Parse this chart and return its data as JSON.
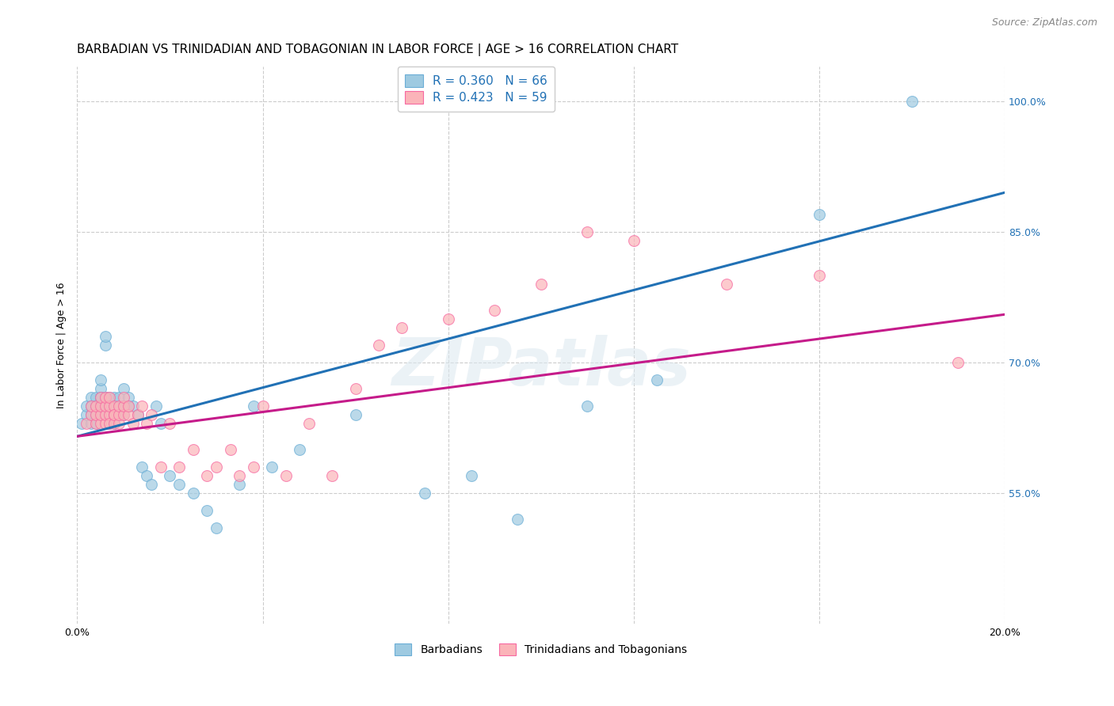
{
  "title": "BARBADIAN VS TRINIDADIAN AND TOBAGONIAN IN LABOR FORCE | AGE > 16 CORRELATION CHART",
  "source": "Source: ZipAtlas.com",
  "ylabel": "In Labor Force | Age > 16",
  "xlim": [
    0.0,
    0.2
  ],
  "ylim": [
    0.4,
    1.04
  ],
  "x_ticks": [
    0.0,
    0.04,
    0.08,
    0.12,
    0.16,
    0.2
  ],
  "x_tick_labels": [
    "0.0%",
    "",
    "",
    "",
    "",
    "20.0%"
  ],
  "y_ticks": [
    0.55,
    0.7,
    0.85,
    1.0
  ],
  "y_tick_labels": [
    "55.0%",
    "70.0%",
    "85.0%",
    "100.0%"
  ],
  "blue_color": "#9ecae1",
  "pink_color": "#fbb4b9",
  "blue_edge_color": "#6baed6",
  "pink_edge_color": "#f768a1",
  "blue_line_color": "#2171b5",
  "pink_line_color": "#c51b8a",
  "legend_label_blue": "R = 0.360   N = 66",
  "legend_label_pink": "R = 0.423   N = 59",
  "barbadians_label": "Barbadians",
  "trinidadians_label": "Trinidadians and Tobagonians",
  "watermark": "ZIPatlas",
  "blue_scatter_x": [
    0.001,
    0.002,
    0.002,
    0.003,
    0.003,
    0.003,
    0.003,
    0.004,
    0.004,
    0.004,
    0.004,
    0.004,
    0.004,
    0.005,
    0.005,
    0.005,
    0.005,
    0.005,
    0.005,
    0.005,
    0.006,
    0.006,
    0.006,
    0.006,
    0.006,
    0.006,
    0.007,
    0.007,
    0.007,
    0.007,
    0.008,
    0.008,
    0.008,
    0.008,
    0.009,
    0.009,
    0.009,
    0.01,
    0.01,
    0.01,
    0.011,
    0.011,
    0.012,
    0.013,
    0.014,
    0.015,
    0.016,
    0.017,
    0.018,
    0.02,
    0.022,
    0.025,
    0.028,
    0.03,
    0.035,
    0.038,
    0.042,
    0.048,
    0.06,
    0.075,
    0.085,
    0.095,
    0.11,
    0.125,
    0.16,
    0.18
  ],
  "blue_scatter_y": [
    0.63,
    0.64,
    0.65,
    0.66,
    0.64,
    0.65,
    0.63,
    0.65,
    0.66,
    0.64,
    0.63,
    0.65,
    0.64,
    0.66,
    0.65,
    0.67,
    0.68,
    0.64,
    0.66,
    0.65,
    0.72,
    0.73,
    0.64,
    0.65,
    0.66,
    0.65,
    0.64,
    0.65,
    0.66,
    0.63,
    0.65,
    0.64,
    0.63,
    0.66,
    0.64,
    0.65,
    0.66,
    0.67,
    0.65,
    0.64,
    0.65,
    0.66,
    0.65,
    0.64,
    0.58,
    0.57,
    0.56,
    0.65,
    0.63,
    0.57,
    0.56,
    0.55,
    0.53,
    0.51,
    0.56,
    0.65,
    0.58,
    0.6,
    0.64,
    0.55,
    0.57,
    0.52,
    0.65,
    0.68,
    0.87,
    1.0
  ],
  "pink_scatter_x": [
    0.002,
    0.003,
    0.003,
    0.004,
    0.004,
    0.004,
    0.005,
    0.005,
    0.005,
    0.005,
    0.006,
    0.006,
    0.006,
    0.006,
    0.007,
    0.007,
    0.007,
    0.007,
    0.008,
    0.008,
    0.008,
    0.008,
    0.009,
    0.009,
    0.009,
    0.01,
    0.01,
    0.01,
    0.011,
    0.011,
    0.012,
    0.013,
    0.014,
    0.015,
    0.016,
    0.018,
    0.02,
    0.022,
    0.025,
    0.028,
    0.03,
    0.033,
    0.035,
    0.038,
    0.04,
    0.045,
    0.05,
    0.055,
    0.06,
    0.065,
    0.07,
    0.08,
    0.09,
    0.1,
    0.11,
    0.12,
    0.14,
    0.16,
    0.19
  ],
  "pink_scatter_y": [
    0.63,
    0.64,
    0.65,
    0.63,
    0.64,
    0.65,
    0.63,
    0.64,
    0.65,
    0.66,
    0.63,
    0.64,
    0.65,
    0.66,
    0.64,
    0.65,
    0.66,
    0.63,
    0.64,
    0.65,
    0.63,
    0.64,
    0.63,
    0.64,
    0.65,
    0.64,
    0.65,
    0.66,
    0.64,
    0.65,
    0.63,
    0.64,
    0.65,
    0.63,
    0.64,
    0.58,
    0.63,
    0.58,
    0.6,
    0.57,
    0.58,
    0.6,
    0.57,
    0.58,
    0.65,
    0.57,
    0.63,
    0.57,
    0.67,
    0.72,
    0.74,
    0.75,
    0.76,
    0.79,
    0.85,
    0.84,
    0.79,
    0.8,
    0.7
  ],
  "blue_line_x0": 0.0,
  "blue_line_x1": 0.2,
  "blue_line_y0": 0.615,
  "blue_line_y1": 0.895,
  "pink_line_x0": 0.0,
  "pink_line_x1": 0.2,
  "pink_line_y0": 0.615,
  "pink_line_y1": 0.755,
  "title_fontsize": 11,
  "axis_label_fontsize": 9,
  "tick_fontsize": 9,
  "legend_fontsize": 11,
  "source_fontsize": 9,
  "background_color": "#ffffff",
  "grid_color": "#cccccc"
}
